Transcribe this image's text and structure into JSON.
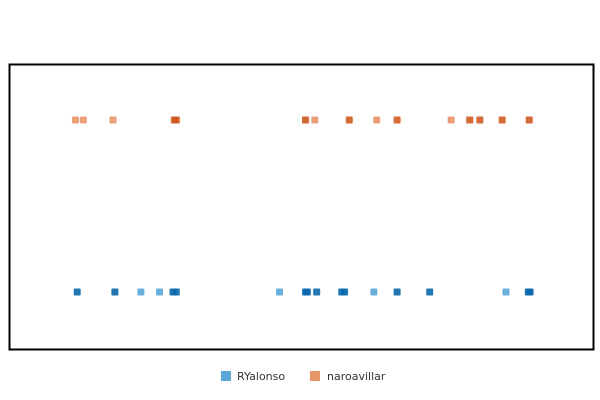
{
  "chart_data": {
    "type": "scatter",
    "title": "",
    "xlabel": "",
    "ylabel": "",
    "grid": false,
    "legend_position": "bottom",
    "x_range": [
      0,
      100
    ],
    "series": [
      {
        "name": "RYalonso",
        "color": "#5ba7d8",
        "dark_color": "#0868ac",
        "row": 0,
        "points": [
          {
            "x": 2.2,
            "dark": true
          },
          {
            "x": 10.3,
            "dark": true
          },
          {
            "x": 15.9,
            "dark": false
          },
          {
            "x": 19.9,
            "dark": false
          },
          {
            "x": 22.8,
            "dark": true
          },
          {
            "x": 23.5,
            "dark": true
          },
          {
            "x": 45.7,
            "dark": false
          },
          {
            "x": 51.3,
            "dark": true
          },
          {
            "x": 51.7,
            "dark": true
          },
          {
            "x": 53.7,
            "dark": true
          },
          {
            "x": 59.1,
            "dark": true
          },
          {
            "x": 59.7,
            "dark": true
          },
          {
            "x": 66.0,
            "dark": false
          },
          {
            "x": 71.0,
            "dark": true
          },
          {
            "x": 78.0,
            "dark": true
          },
          {
            "x": 94.4,
            "dark": false
          },
          {
            "x": 99.2,
            "dark": true
          },
          {
            "x": 99.6,
            "dark": true
          }
        ]
      },
      {
        "name": "naroavillar",
        "color": "#e8956a",
        "dark_color": "#cf5a1f",
        "row": 1,
        "points": [
          {
            "x": 1.8,
            "dark": false
          },
          {
            "x": 3.5,
            "dark": false
          },
          {
            "x": 9.9,
            "dark": false
          },
          {
            "x": 23.1,
            "dark": true
          },
          {
            "x": 23.5,
            "dark": true
          },
          {
            "x": 51.3,
            "dark": true
          },
          {
            "x": 53.3,
            "dark": false
          },
          {
            "x": 60.7,
            "dark": true
          },
          {
            "x": 66.6,
            "dark": false
          },
          {
            "x": 71.0,
            "dark": true
          },
          {
            "x": 82.6,
            "dark": false
          },
          {
            "x": 86.6,
            "dark": true
          },
          {
            "x": 88.8,
            "dark": true
          },
          {
            "x": 93.6,
            "dark": true
          },
          {
            "x": 99.4,
            "dark": true
          }
        ]
      }
    ]
  }
}
